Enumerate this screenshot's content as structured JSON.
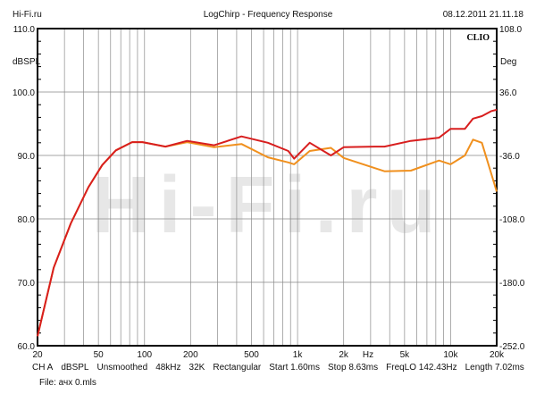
{
  "header": {
    "left": "Hi-Fi.ru",
    "title": "LogChirp - Frequency Response",
    "timestamp": "08.12.2011 21.11.18"
  },
  "brand": "CLIO",
  "watermark": "Hi-Fi.ru",
  "footer": {
    "params": [
      "CH A",
      "dBSPL",
      "Unsmoothed",
      "48kHz",
      "32K",
      "Rectangular",
      "Start 1.60ms",
      "Stop 8.63ms",
      "FreqLO 142.43Hz",
      "Length 7.02ms"
    ],
    "file": "File: ачх 0.mls"
  },
  "chart_data": {
    "type": "line",
    "title": "LogChirp - Frequency Response",
    "xlabel": "Hz",
    "ylabel": "dBSPL",
    "y2label": "Deg",
    "xscale": "log",
    "xlim": [
      20,
      20000
    ],
    "ylim": [
      60,
      110
    ],
    "y2lim": [
      -252,
      108
    ],
    "grid": true,
    "xticks": [
      {
        "v": 20,
        "l": "20"
      },
      {
        "v": 50,
        "l": "50"
      },
      {
        "v": 100,
        "l": "100"
      },
      {
        "v": 200,
        "l": "200"
      },
      {
        "v": 500,
        "l": "500"
      },
      {
        "v": 1000,
        "l": "1k"
      },
      {
        "v": 2000,
        "l": "2k"
      },
      {
        "v": 5000,
        "l": "5k"
      },
      {
        "v": 10000,
        "l": "10k"
      },
      {
        "v": 20000,
        "l": "20k"
      }
    ],
    "yticks": [
      "60.0",
      "70.0",
      "80.0",
      "90.0",
      "100.0",
      "110.0"
    ],
    "y2ticks": [
      "-252.0",
      "-180.0",
      "-108.0",
      "-36.0",
      "36.0",
      "108.0"
    ],
    "series": [
      {
        "name": "red",
        "color": "#d81e1e",
        "x": [
          20,
          25.5,
          33,
          43,
          53,
          65,
          83,
          97,
          137,
          190,
          285,
          430,
          640,
          870,
          950,
          1200,
          1650,
          2000,
          3200,
          3700,
          5500,
          8400,
          10000,
          12400,
          14000,
          16000,
          18500,
          20000
        ],
        "y": [
          61.5,
          72.3,
          79.3,
          85,
          88.5,
          90.8,
          92.1,
          92.1,
          91.4,
          92.3,
          91.6,
          93,
          92,
          90.7,
          89.5,
          92,
          90,
          91.3,
          91.4,
          91.4,
          92.3,
          92.8,
          94.2,
          94.2,
          95.8,
          96.2,
          97,
          97.2
        ]
      },
      {
        "name": "orange",
        "color": "#f0901e",
        "x": [
          20,
          25.5,
          33,
          43,
          53,
          65,
          83,
          97,
          137,
          190,
          285,
          430,
          640,
          870,
          950,
          1200,
          1650,
          2000,
          3200,
          3700,
          5500,
          8400,
          10000,
          12400,
          14000,
          16000,
          18500,
          20000
        ],
        "y": [
          61.5,
          72.3,
          79.3,
          85,
          88.5,
          90.8,
          92.1,
          92.1,
          91.4,
          92.1,
          91.3,
          91.8,
          89.7,
          88.9,
          88.6,
          90.7,
          91.2,
          89.6,
          88,
          87.5,
          87.6,
          89.2,
          88.6,
          90,
          92.5,
          92,
          87,
          84.3
        ]
      }
    ]
  }
}
